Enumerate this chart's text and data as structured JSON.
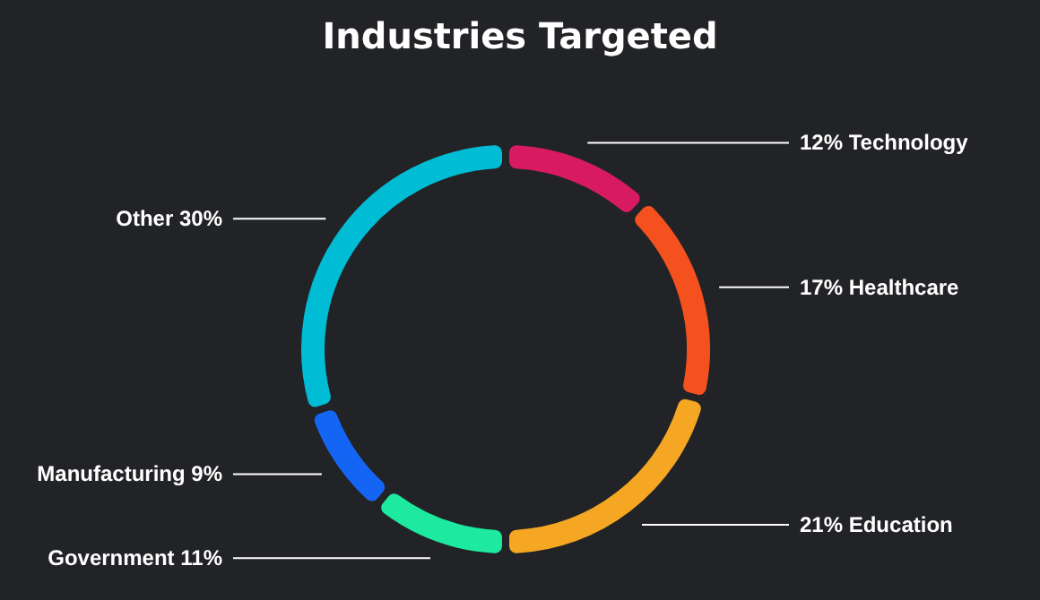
{
  "chart_data": {
    "type": "donut",
    "title": "Industries Targeted",
    "categories": [
      "Technology",
      "Healthcare",
      "Education",
      "Government",
      "Manufacturing",
      "Other"
    ],
    "values": [
      12,
      17,
      21,
      11,
      9,
      30
    ],
    "colors": [
      "#d81b60",
      "#f4511e",
      "#f5a623",
      "#1de9a0",
      "#1565f5",
      "#00bcd4"
    ],
    "value_labels": [
      "12%",
      "17%",
      "21%",
      "11%",
      "9%",
      "30%"
    ]
  }
}
